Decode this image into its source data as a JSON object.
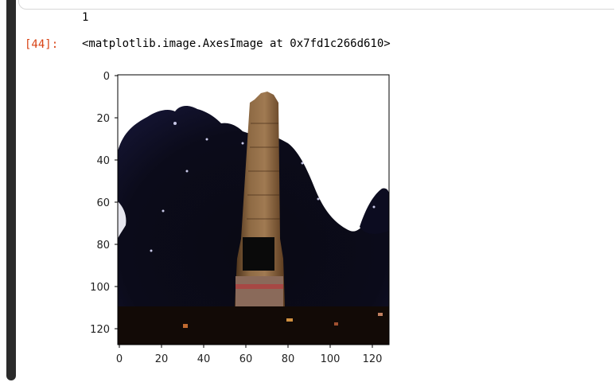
{
  "cell": {
    "stdout": "1",
    "prompt": "[44]:",
    "output_repr": "<matplotlib.image.AxesImage at 0x7fd1c266d610>"
  },
  "plot": {
    "y_ticks": [
      "0",
      "20",
      "40",
      "60",
      "80",
      "100",
      "120"
    ],
    "x_ticks": [
      "0",
      "20",
      "40",
      "60",
      "80",
      "100",
      "120"
    ],
    "image_subject": "stone obelisk monument against dark trees and white sky"
  },
  "colors": {
    "prompt": "#d84315",
    "selection_bar": "#2b2b2b"
  }
}
